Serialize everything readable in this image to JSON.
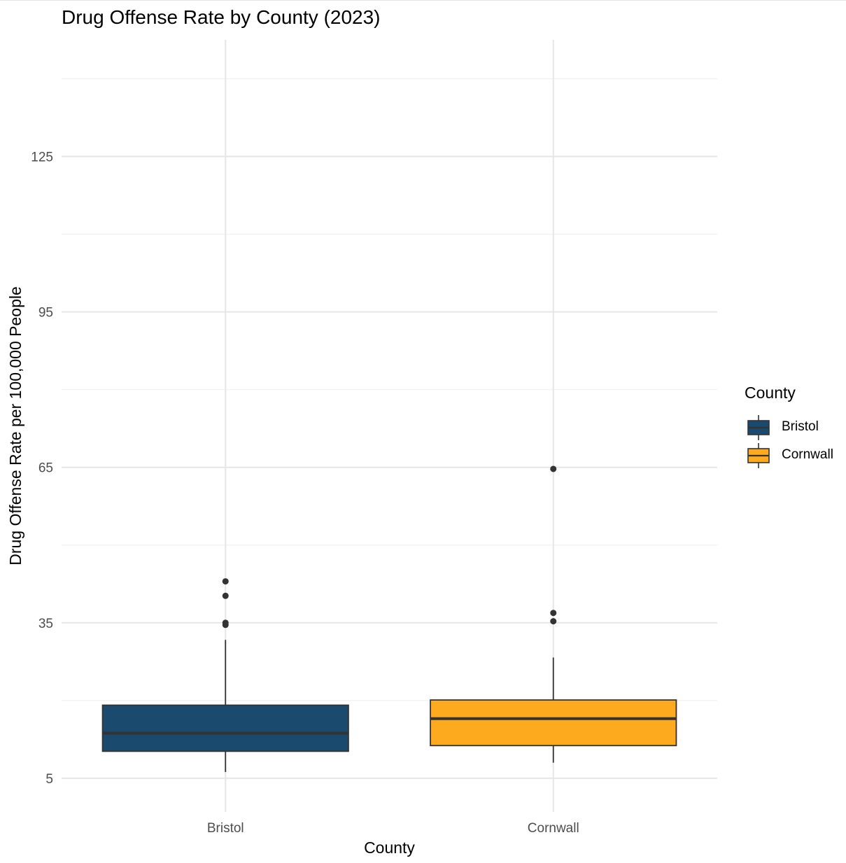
{
  "chart_data": {
    "type": "boxplot",
    "title": "Drug Offense Rate by County (2023)",
    "xlabel": "County",
    "ylabel": "Drug Offense Rate per 100,000 People",
    "y_ticks": [
      "125",
      "95",
      "65",
      "35",
      "5"
    ],
    "ylim": [
      -1.5,
      147.5
    ],
    "grid": true,
    "legend_title": "County",
    "legend_position": "right",
    "categories": [
      "Bristol",
      "Cornwall"
    ],
    "series": [
      {
        "name": "Bristol",
        "color": "#1a4a6e",
        "whisker_low": 6.2,
        "q1": 10.2,
        "median": 13.7,
        "q3": 19.1,
        "whisker_high": 31.7,
        "outliers": [
          34.6,
          35.0,
          40.2,
          43.0
        ]
      },
      {
        "name": "Cornwall",
        "color": "#fdaa1e",
        "whisker_low": 8.0,
        "q1": 11.3,
        "median": 16.5,
        "q3": 20.1,
        "whisker_high": 28.3,
        "outliers": [
          35.3,
          36.9,
          64.7
        ]
      }
    ]
  }
}
